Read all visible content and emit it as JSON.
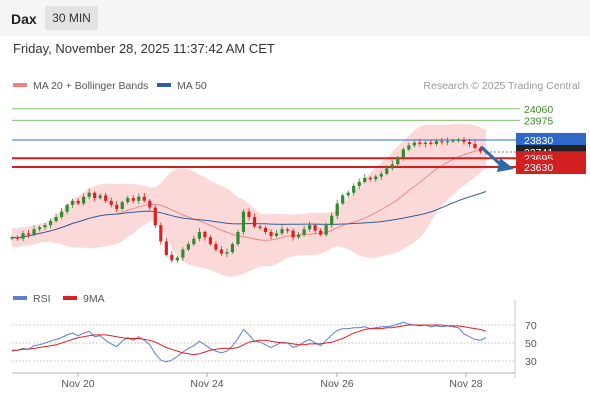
{
  "header": {
    "instrument": "Dax",
    "timeframe": "30 MIN",
    "datetime": "Friday, November 28, 2025 11:37:42 AM CET"
  },
  "legend": {
    "bb_label": "MA 20 + Bollinger Bands",
    "ma50_label": "MA 50",
    "credit": "Research © 2025 Trading Central"
  },
  "rsi_legend": {
    "rsi_label": "RSI",
    "ma_label": "9MA"
  },
  "colors": {
    "up_candle": "#2e8b2e",
    "down_candle": "#e02020",
    "bollinger_fill": "#fcd9d9",
    "ma20": "#f08080",
    "ma50": "#2e5ea0",
    "target_green": "#74b95a",
    "pivot_blue": "#2f68c9",
    "support_red": "#d21f1f",
    "rsi": "#5b7fd6",
    "rsi_ma": "#e02020"
  },
  "chart_data": {
    "type": "candlestick",
    "x_ticks": [
      "Nov 20",
      "Nov 24",
      "Nov 26",
      "Nov 28"
    ],
    "levels": [
      {
        "label": "24060",
        "value": 24060,
        "kind": "target"
      },
      {
        "label": "23975",
        "value": 23975,
        "kind": "target"
      },
      {
        "label": "23830",
        "value": 23830,
        "kind": "pivot"
      },
      {
        "label": "23741",
        "value": 23741,
        "kind": "last"
      },
      {
        "label": "23695",
        "value": 23695,
        "kind": "support"
      },
      {
        "label": "23630",
        "value": 23630,
        "kind": "support"
      }
    ],
    "closes": [
      23110,
      23100,
      23140,
      23130,
      23170,
      23185,
      23200,
      23230,
      23260,
      23300,
      23350,
      23380,
      23360,
      23410,
      23440,
      23400,
      23420,
      23380,
      23350,
      23320,
      23370,
      23400,
      23380,
      23410,
      23380,
      23330,
      23200,
      23080,
      22980,
      22940,
      22960,
      23020,
      23060,
      23100,
      23150,
      23110,
      23060,
      23020,
      22990,
      23000,
      23060,
      23150,
      23300,
      23260,
      23190,
      23180,
      23150,
      23120,
      23140,
      23170,
      23160,
      23110,
      23130,
      23170,
      23200,
      23160,
      23130,
      23200,
      23270,
      23360,
      23420,
      23440,
      23490,
      23520,
      23550,
      23540,
      23560,
      23580,
      23620,
      23650,
      23700,
      23760,
      23790,
      23810,
      23800,
      23810,
      23800,
      23820,
      23815,
      23820,
      23825,
      23830,
      23815,
      23800,
      23770,
      23745,
      23741
    ],
    "rsi": {
      "y_ticks": [
        70,
        50,
        30
      ],
      "values": [
        41,
        42,
        44,
        43,
        47,
        48,
        50,
        52,
        54,
        56,
        59,
        61,
        58,
        61,
        63,
        57,
        58,
        53,
        49,
        46,
        52,
        56,
        53,
        57,
        53,
        48,
        38,
        31,
        29,
        31,
        35,
        40,
        44,
        47,
        52,
        48,
        44,
        41,
        39,
        41,
        47,
        55,
        65,
        59,
        52,
        51,
        48,
        45,
        48,
        51,
        50,
        45,
        47,
        51,
        54,
        50,
        47,
        53,
        59,
        64,
        66,
        66,
        67,
        67,
        68,
        66,
        67,
        68,
        68,
        69,
        71,
        73,
        71,
        70,
        69,
        70,
        68,
        69,
        68,
        69,
        68,
        67,
        60,
        57,
        54,
        53,
        56
      ],
      "ma_values": [
        42,
        42,
        43,
        43,
        44,
        45,
        46,
        47,
        48,
        50,
        52,
        54,
        56,
        57,
        58,
        59,
        59,
        59,
        58,
        57,
        56,
        55,
        55,
        55,
        54,
        53,
        51,
        48,
        45,
        43,
        41,
        39,
        38,
        37,
        38,
        40,
        42,
        43,
        44,
        44,
        44,
        45,
        48,
        51,
        52,
        53,
        53,
        52,
        51,
        50,
        50,
        49,
        48,
        48,
        49,
        49,
        49,
        50,
        51,
        53,
        55,
        58,
        61,
        63,
        65,
        66,
        66,
        66,
        67,
        67,
        68,
        69,
        70,
        70,
        70,
        70,
        70,
        70,
        70,
        69,
        69,
        69,
        68,
        67,
        66,
        65,
        63
      ]
    }
  }
}
